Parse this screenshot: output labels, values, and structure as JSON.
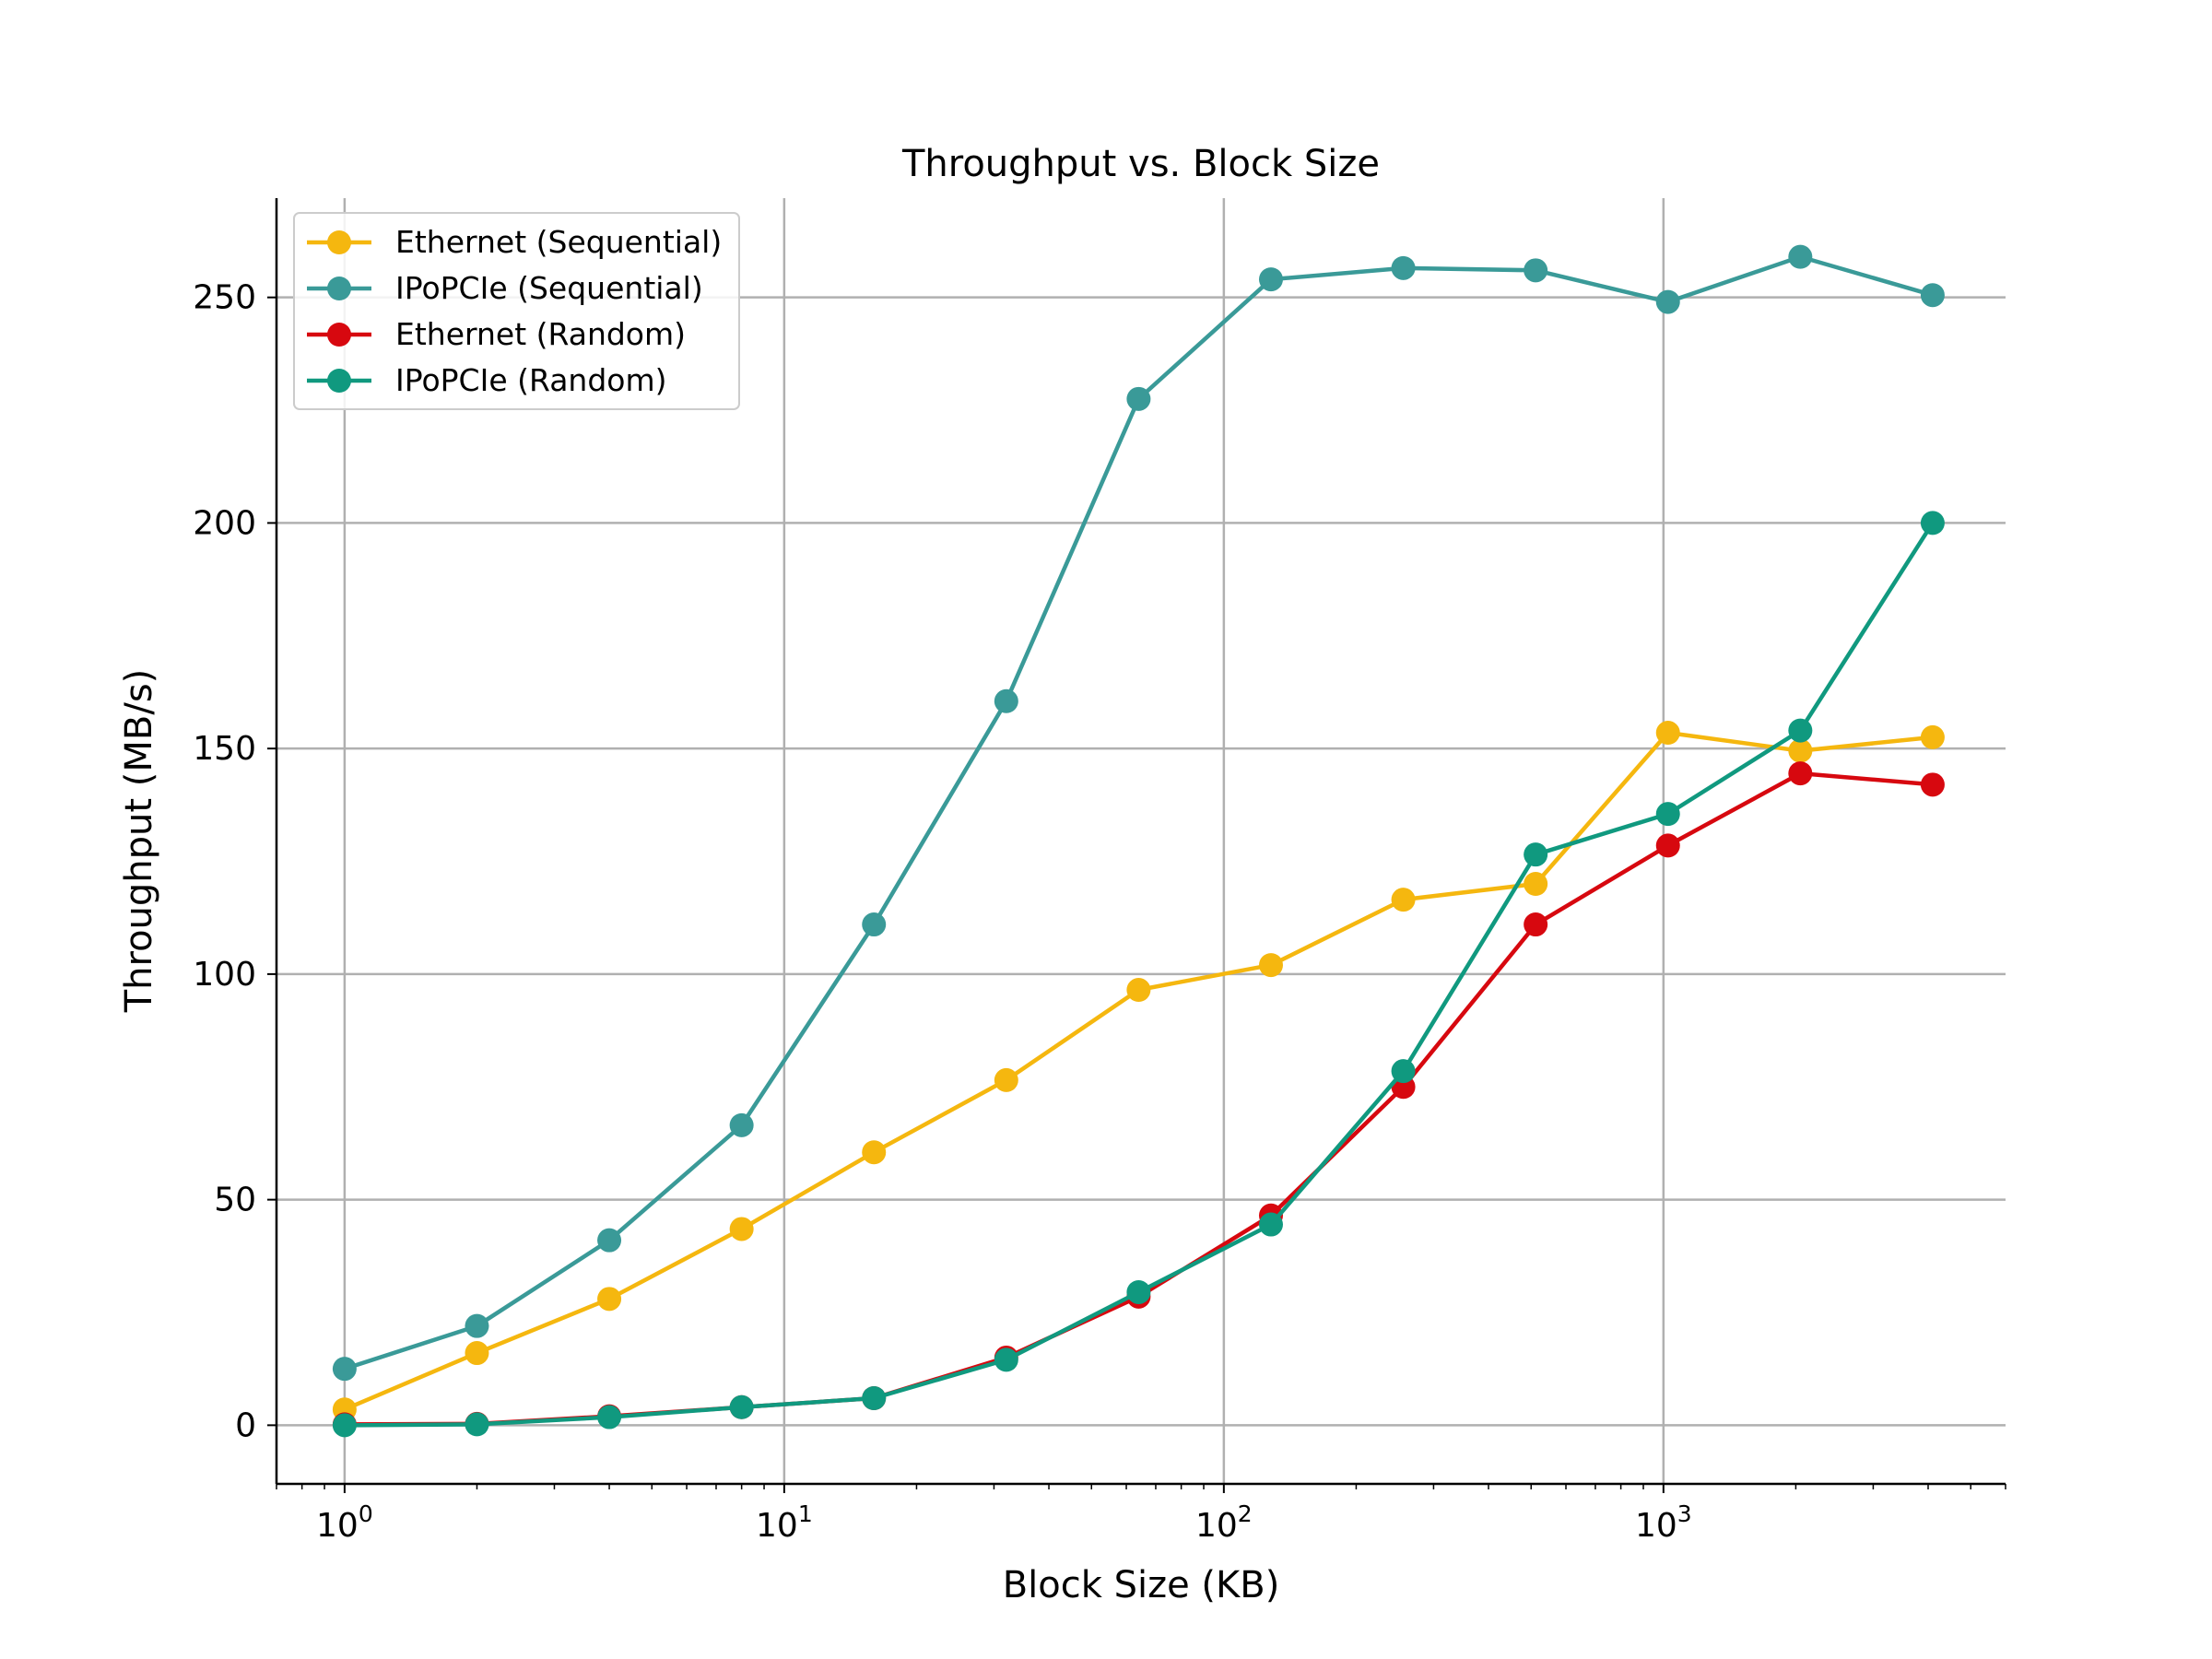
{
  "chart_data": {
    "type": "line",
    "title": "Throughput vs. Block Size",
    "xlabel": "Block Size (KB)",
    "ylabel": "Throughput (MB/s)",
    "xscale": "log",
    "xlim": [
      0.7,
      6000
    ],
    "ylim": [
      -13,
      272
    ],
    "grid": true,
    "legend_loc": "upper left",
    "x": [
      1,
      2,
      4,
      8,
      16,
      32,
      64,
      128,
      256,
      512,
      1024,
      2048,
      4096
    ],
    "xticks": [
      {
        "value": 1,
        "base": "10",
        "exp": "0"
      },
      {
        "value": 10,
        "base": "10",
        "exp": "1"
      },
      {
        "value": 100,
        "base": "10",
        "exp": "2"
      },
      {
        "value": 1000,
        "base": "10",
        "exp": "3"
      }
    ],
    "yticks": [
      {
        "value": 0,
        "label": "0"
      },
      {
        "value": 50,
        "label": "50"
      },
      {
        "value": 100,
        "label": "100"
      },
      {
        "value": 150,
        "label": "150"
      },
      {
        "value": 200,
        "label": "200"
      },
      {
        "value": 250,
        "label": "250"
      }
    ],
    "series": [
      {
        "name": "Ethernet (Sequential)",
        "color": "#f5b70f",
        "values": [
          3.5,
          16,
          28,
          43.5,
          60.5,
          76.5,
          96.5,
          102,
          116.5,
          120,
          153.5,
          149.5,
          152.5
        ]
      },
      {
        "name": "IPoPCIe (Sequential)",
        "color": "#3a9a98",
        "values": [
          12.5,
          22,
          41,
          66.5,
          111,
          160.5,
          227.5,
          254,
          256.5,
          256,
          249,
          259,
          250.5
        ]
      },
      {
        "name": "Ethernet (Random)",
        "color": "#d7080f",
        "values": [
          0.2,
          0.3,
          2,
          4,
          6,
          15,
          28.5,
          46.5,
          75,
          111,
          128.5,
          144.5,
          142
        ]
      },
      {
        "name": "IPoPCIe (Random)",
        "color": "#10997f",
        "values": [
          0,
          0.2,
          1.8,
          4,
          6,
          14.5,
          29.5,
          44.5,
          78.5,
          126.5,
          135.5,
          154,
          200
        ]
      }
    ]
  }
}
